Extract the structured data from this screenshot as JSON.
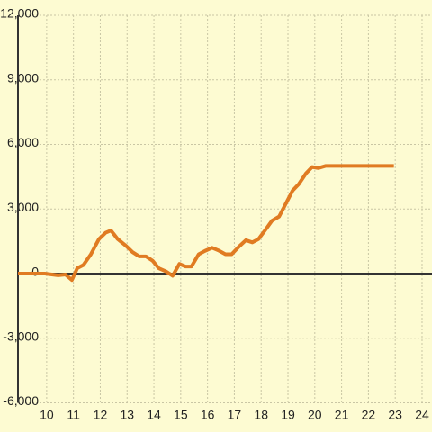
{
  "chart_data": {
    "type": "line",
    "xlim": [
      8.93,
      24.37
    ],
    "ylim": [
      -6000,
      12000
    ],
    "xticks": [
      10,
      11,
      12,
      13,
      14,
      15,
      16,
      17,
      18,
      19,
      20,
      21,
      22,
      23,
      24
    ],
    "yticks": [
      {
        "value": -6000,
        "label": "-6,000"
      },
      {
        "value": -3000,
        "label": "-3,000"
      },
      0,
      {
        "value": 3000,
        "label": "3,000"
      },
      {
        "value": 6000,
        "label": "6,000"
      },
      {
        "value": 9000,
        "label": "9,000"
      },
      {
        "value": 12000,
        "label": "12,000"
      }
    ],
    "grid": true,
    "series": [
      {
        "color": "#e07b22",
        "x": [
          8.93,
          9.93,
          10.43,
          10.7,
          10.94,
          11.14,
          11.37,
          11.65,
          11.95,
          12.2,
          12.4,
          12.65,
          12.95,
          13.2,
          13.45,
          13.7,
          13.95,
          14.18,
          14.45,
          14.7,
          14.95,
          15.18,
          15.4,
          15.67,
          15.9,
          16.17,
          16.4,
          16.67,
          16.9,
          17.17,
          17.43,
          17.67,
          17.9,
          18.17,
          18.4,
          18.67,
          18.9,
          19.17,
          19.4,
          19.67,
          19.9,
          20.13,
          20.4,
          22.95
        ],
        "values": [
          0,
          0,
          -80,
          -40,
          -300,
          250,
          400,
          900,
          1600,
          1900,
          2000,
          1600,
          1300,
          1000,
          800,
          800,
          600,
          250,
          100,
          -100,
          450,
          330,
          330,
          900,
          1050,
          1200,
          1080,
          900,
          900,
          1250,
          1550,
          1450,
          1600,
          2050,
          2450,
          2650,
          3200,
          3850,
          4150,
          4650,
          4950,
          4900,
          5000,
          5000
        ]
      }
    ]
  }
}
